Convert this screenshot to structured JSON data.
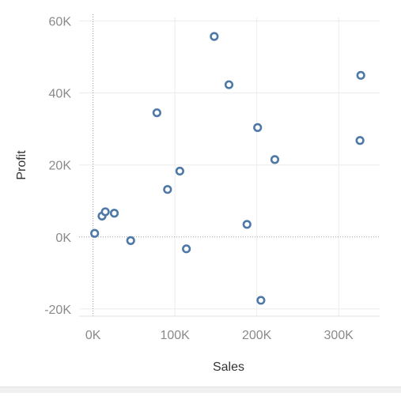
{
  "chart_data": {
    "type": "scatter",
    "title": "",
    "xlabel": "Sales",
    "ylabel": "Profit",
    "xlim": [
      -17000,
      350000
    ],
    "ylim": [
      -22000,
      61000
    ],
    "grid": true,
    "x_ticks": [
      {
        "value": 0,
        "label": "0K"
      },
      {
        "value": 100000,
        "label": "100K"
      },
      {
        "value": 200000,
        "label": "200K"
      },
      {
        "value": 300000,
        "label": "300K"
      }
    ],
    "y_ticks": [
      {
        "value": -20000,
        "label": "-20K"
      },
      {
        "value": 0,
        "label": "0K"
      },
      {
        "value": 20000,
        "label": "20K"
      },
      {
        "value": 40000,
        "label": "40K"
      },
      {
        "value": 60000,
        "label": "60K"
      }
    ],
    "marker": {
      "shape": "hollow-circle",
      "color": "#4e79a7"
    },
    "points": [
      {
        "x": 2000,
        "y": 1000
      },
      {
        "x": 11000,
        "y": 5800
      },
      {
        "x": 15000,
        "y": 7000
      },
      {
        "x": 26000,
        "y": 6600
      },
      {
        "x": 46000,
        "y": -1000
      },
      {
        "x": 78000,
        "y": 34500
      },
      {
        "x": 91000,
        "y": 13200
      },
      {
        "x": 106000,
        "y": 18300
      },
      {
        "x": 114000,
        "y": -3300
      },
      {
        "x": 148000,
        "y": 55700
      },
      {
        "x": 166000,
        "y": 42300
      },
      {
        "x": 188000,
        "y": 3500
      },
      {
        "x": 201000,
        "y": 30400
      },
      {
        "x": 205000,
        "y": -17600
      },
      {
        "x": 222000,
        "y": 21500
      },
      {
        "x": 326000,
        "y": 26800
      },
      {
        "x": 327000,
        "y": 44900
      }
    ]
  }
}
